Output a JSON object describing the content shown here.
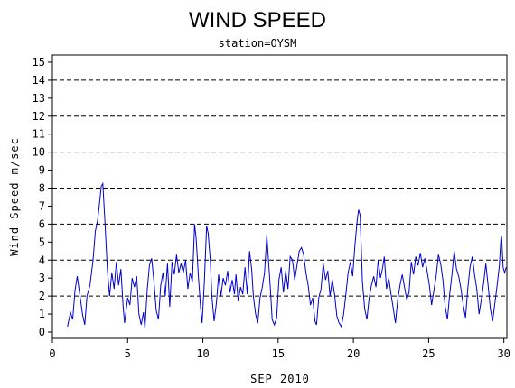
{
  "chart_data": {
    "type": "line",
    "title": "WIND SPEED",
    "subtitle": "station=OYSM",
    "xlabel": "SEP 2010",
    "ylabel": "Wind Speed m/sec",
    "xlim": [
      0,
      30.2
    ],
    "ylim": [
      0,
      15.4
    ],
    "xticks": [
      0,
      5,
      10,
      15,
      20,
      25,
      30
    ],
    "yticks": [
      0,
      1,
      2,
      3,
      4,
      5,
      6,
      7,
      8,
      9,
      10,
      11,
      12,
      13,
      14,
      15
    ],
    "reference_lines": [
      2,
      4,
      6,
      8,
      10,
      12,
      14
    ],
    "reference_line_style": "dashed",
    "colors": {
      "line": "#0000cc",
      "axis": "#000000",
      "reference": "#000000"
    },
    "series": [
      {
        "values": [
          [
            1.0,
            0.3
          ],
          [
            1.2,
            1.1
          ],
          [
            1.35,
            0.7
          ],
          [
            1.5,
            2.3
          ],
          [
            1.65,
            3.1
          ],
          [
            1.8,
            2.2
          ],
          [
            2.0,
            1.0
          ],
          [
            2.15,
            0.4
          ],
          [
            2.3,
            2.0
          ],
          [
            2.5,
            2.6
          ],
          [
            2.7,
            4.0
          ],
          [
            2.85,
            5.6
          ],
          [
            3.0,
            6.2
          ],
          [
            3.1,
            6.9
          ],
          [
            3.25,
            8.1
          ],
          [
            3.35,
            8.25
          ],
          [
            3.5,
            6.0
          ],
          [
            3.65,
            3.5
          ],
          [
            3.8,
            2.0
          ],
          [
            3.95,
            3.3
          ],
          [
            4.1,
            2.4
          ],
          [
            4.25,
            3.9
          ],
          [
            4.4,
            2.6
          ],
          [
            4.55,
            3.5
          ],
          [
            4.7,
            1.4
          ],
          [
            4.8,
            0.5
          ],
          [
            5.0,
            1.9
          ],
          [
            5.15,
            1.5
          ],
          [
            5.3,
            3.0
          ],
          [
            5.45,
            2.5
          ],
          [
            5.6,
            3.1
          ],
          [
            5.75,
            1.0
          ],
          [
            5.9,
            0.4
          ],
          [
            6.05,
            1.1
          ],
          [
            6.15,
            0.2
          ],
          [
            6.3,
            2.3
          ],
          [
            6.45,
            3.7
          ],
          [
            6.6,
            4.1
          ],
          [
            6.75,
            2.8
          ],
          [
            6.9,
            1.2
          ],
          [
            7.05,
            0.7
          ],
          [
            7.2,
            2.6
          ],
          [
            7.35,
            3.3
          ],
          [
            7.5,
            2.0
          ],
          [
            7.65,
            3.8
          ],
          [
            7.8,
            1.4
          ],
          [
            7.95,
            3.9
          ],
          [
            8.1,
            3.2
          ],
          [
            8.25,
            4.3
          ],
          [
            8.4,
            3.3
          ],
          [
            8.55,
            3.8
          ],
          [
            8.7,
            3.3
          ],
          [
            8.85,
            4.0
          ],
          [
            9.0,
            2.4
          ],
          [
            9.15,
            3.3
          ],
          [
            9.3,
            2.8
          ],
          [
            9.45,
            6.0
          ],
          [
            9.55,
            5.2
          ],
          [
            9.7,
            3.1
          ],
          [
            9.85,
            1.3
          ],
          [
            9.95,
            0.5
          ],
          [
            10.1,
            2.8
          ],
          [
            10.25,
            5.9
          ],
          [
            10.35,
            5.5
          ],
          [
            10.5,
            3.9
          ],
          [
            10.6,
            2.0
          ],
          [
            10.75,
            0.6
          ],
          [
            10.9,
            1.6
          ],
          [
            11.05,
            3.2
          ],
          [
            11.2,
            2.0
          ],
          [
            11.35,
            3.0
          ],
          [
            11.5,
            2.6
          ],
          [
            11.65,
            3.4
          ],
          [
            11.8,
            2.2
          ],
          [
            11.95,
            2.9
          ],
          [
            12.1,
            2.1
          ],
          [
            12.2,
            3.2
          ],
          [
            12.35,
            1.7
          ],
          [
            12.5,
            2.5
          ],
          [
            12.65,
            2.1
          ],
          [
            12.8,
            3.6
          ],
          [
            12.95,
            2.1
          ],
          [
            13.1,
            4.5
          ],
          [
            13.25,
            3.4
          ],
          [
            13.35,
            2.0
          ],
          [
            13.5,
            1.0
          ],
          [
            13.65,
            0.5
          ],
          [
            13.8,
            1.9
          ],
          [
            13.95,
            2.5
          ],
          [
            14.1,
            3.3
          ],
          [
            14.25,
            5.4
          ],
          [
            14.35,
            4.1
          ],
          [
            14.5,
            2.2
          ],
          [
            14.6,
            0.7
          ],
          [
            14.75,
            0.4
          ],
          [
            14.9,
            0.8
          ],
          [
            15.05,
            2.9
          ],
          [
            15.2,
            3.6
          ],
          [
            15.35,
            2.2
          ],
          [
            15.5,
            3.4
          ],
          [
            15.65,
            2.4
          ],
          [
            15.8,
            4.2
          ],
          [
            15.95,
            4.0
          ],
          [
            16.1,
            2.9
          ],
          [
            16.25,
            3.7
          ],
          [
            16.4,
            4.5
          ],
          [
            16.55,
            4.7
          ],
          [
            16.7,
            4.3
          ],
          [
            16.85,
            3.3
          ],
          [
            17.0,
            2.6
          ],
          [
            17.15,
            1.5
          ],
          [
            17.3,
            1.9
          ],
          [
            17.45,
            0.6
          ],
          [
            17.55,
            0.4
          ],
          [
            17.7,
            1.9
          ],
          [
            17.85,
            2.4
          ],
          [
            18.0,
            3.8
          ],
          [
            18.15,
            2.9
          ],
          [
            18.3,
            3.4
          ],
          [
            18.45,
            2.0
          ],
          [
            18.6,
            2.9
          ],
          [
            18.75,
            2.1
          ],
          [
            18.9,
            0.9
          ],
          [
            19.05,
            0.5
          ],
          [
            19.2,
            0.3
          ],
          [
            19.35,
            1.0
          ],
          [
            19.5,
            2.1
          ],
          [
            19.65,
            3.3
          ],
          [
            19.8,
            3.9
          ],
          [
            19.95,
            3.1
          ],
          [
            20.1,
            4.8
          ],
          [
            20.25,
            6.2
          ],
          [
            20.35,
            6.8
          ],
          [
            20.45,
            6.5
          ],
          [
            20.6,
            2.8
          ],
          [
            20.75,
            1.3
          ],
          [
            20.9,
            0.7
          ],
          [
            21.05,
            1.9
          ],
          [
            21.2,
            2.6
          ],
          [
            21.35,
            3.1
          ],
          [
            21.5,
            2.5
          ],
          [
            21.65,
            4.0
          ],
          [
            21.8,
            3.0
          ],
          [
            21.95,
            3.6
          ],
          [
            22.05,
            4.2
          ],
          [
            22.2,
            2.4
          ],
          [
            22.35,
            3.0
          ],
          [
            22.5,
            2.1
          ],
          [
            22.65,
            1.3
          ],
          [
            22.8,
            0.5
          ],
          [
            22.95,
            1.8
          ],
          [
            23.1,
            2.6
          ],
          [
            23.25,
            3.2
          ],
          [
            23.4,
            2.5
          ],
          [
            23.55,
            1.8
          ],
          [
            23.7,
            2.2
          ],
          [
            23.85,
            3.9
          ],
          [
            24.0,
            3.2
          ],
          [
            24.15,
            4.2
          ],
          [
            24.3,
            3.7
          ],
          [
            24.45,
            4.4
          ],
          [
            24.6,
            3.6
          ],
          [
            24.75,
            4.1
          ],
          [
            24.9,
            3.4
          ],
          [
            25.05,
            2.6
          ],
          [
            25.2,
            1.5
          ],
          [
            25.35,
            2.3
          ],
          [
            25.5,
            3.1
          ],
          [
            25.65,
            4.3
          ],
          [
            25.8,
            3.8
          ],
          [
            25.95,
            2.9
          ],
          [
            26.1,
            1.4
          ],
          [
            26.25,
            0.7
          ],
          [
            26.4,
            2.1
          ],
          [
            26.55,
            3.2
          ],
          [
            26.7,
            4.5
          ],
          [
            26.85,
            3.5
          ],
          [
            27.0,
            3.1
          ],
          [
            27.15,
            2.4
          ],
          [
            27.3,
            1.5
          ],
          [
            27.45,
            0.8
          ],
          [
            27.6,
            2.4
          ],
          [
            27.75,
            3.6
          ],
          [
            27.9,
            4.2
          ],
          [
            28.05,
            3.2
          ],
          [
            28.2,
            2.4
          ],
          [
            28.35,
            1.0
          ],
          [
            28.5,
            1.8
          ],
          [
            28.65,
            2.7
          ],
          [
            28.8,
            3.8
          ],
          [
            28.95,
            2.6
          ],
          [
            29.1,
            1.3
          ],
          [
            29.25,
            0.6
          ],
          [
            29.4,
            1.6
          ],
          [
            29.55,
            2.6
          ],
          [
            29.7,
            3.7
          ],
          [
            29.8,
            5.1
          ],
          [
            29.85,
            5.3
          ],
          [
            29.95,
            3.6
          ],
          [
            30.05,
            3.3
          ],
          [
            30.15,
            3.6
          ]
        ]
      }
    ]
  }
}
